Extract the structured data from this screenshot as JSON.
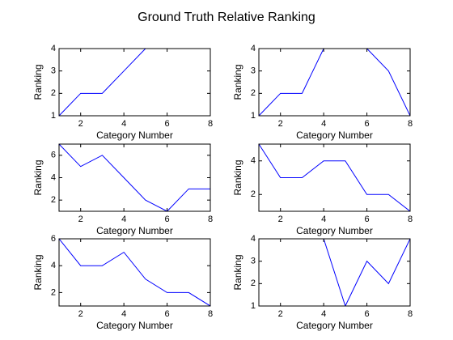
{
  "title": "Ground Truth Relative Ranking",
  "chart_data": [
    {
      "type": "line",
      "xlabel": "Category Number",
      "ylabel": "Ranking",
      "color": "#0000ff",
      "x": [
        1,
        2,
        3,
        4,
        5,
        6,
        7,
        8
      ],
      "values": [
        1,
        2,
        2,
        3,
        4,
        4,
        4,
        4
      ],
      "xlim": [
        1,
        8
      ],
      "ylim": [
        1,
        4
      ],
      "xticks": [
        2,
        4,
        6,
        8
      ],
      "yticks": [
        1,
        2,
        3,
        4
      ]
    },
    {
      "type": "line",
      "xlabel": "Category Number",
      "ylabel": "Ranking",
      "color": "#0000ff",
      "x": [
        1,
        2,
        3,
        4,
        5,
        6,
        7,
        8
      ],
      "values": [
        1,
        2,
        2,
        4,
        4,
        4,
        3,
        1
      ],
      "xlim": [
        1,
        8
      ],
      "ylim": [
        1,
        4
      ],
      "xticks": [
        2,
        4,
        6,
        8
      ],
      "yticks": [
        1,
        2,
        3,
        4
      ]
    },
    {
      "type": "line",
      "xlabel": "Category Number",
      "ylabel": "Ranking",
      "color": "#0000ff",
      "x": [
        1,
        2,
        3,
        4,
        5,
        6,
        7,
        8
      ],
      "values": [
        7,
        5,
        6,
        4,
        2,
        1,
        3,
        3
      ],
      "xlim": [
        1,
        8
      ],
      "ylim": [
        1,
        7
      ],
      "xticks": [
        2,
        4,
        6,
        8
      ],
      "yticks": [
        2,
        4,
        6
      ]
    },
    {
      "type": "line",
      "xlabel": "Category Number",
      "ylabel": "Ranking",
      "color": "#0000ff",
      "x": [
        1,
        2,
        3,
        4,
        5,
        6,
        7,
        8
      ],
      "values": [
        5,
        3,
        3,
        4,
        4,
        2,
        2,
        1
      ],
      "xlim": [
        1,
        8
      ],
      "ylim": [
        1,
        5
      ],
      "xticks": [
        2,
        4,
        6,
        8
      ],
      "yticks": [
        2,
        4
      ]
    },
    {
      "type": "line",
      "xlabel": "Category Number",
      "ylabel": "Ranking",
      "color": "#0000ff",
      "x": [
        1,
        2,
        3,
        4,
        5,
        6,
        7,
        8
      ],
      "values": [
        6,
        4,
        4,
        5,
        3,
        2,
        2,
        1
      ],
      "xlim": [
        1,
        8
      ],
      "ylim": [
        1,
        6
      ],
      "xticks": [
        2,
        4,
        6,
        8
      ],
      "yticks": [
        2,
        4,
        6
      ]
    },
    {
      "type": "line",
      "xlabel": "Category Number",
      "ylabel": "Ranking",
      "color": "#0000ff",
      "x": [
        1,
        2,
        3,
        4,
        5,
        6,
        7,
        8
      ],
      "values": [
        null,
        null,
        null,
        4,
        1,
        3,
        2,
        4
      ],
      "xlim": [
        1,
        8
      ],
      "ylim": [
        1,
        4
      ],
      "xticks": [
        2,
        4,
        6,
        8
      ],
      "yticks": [
        1,
        2,
        3,
        4
      ]
    }
  ]
}
